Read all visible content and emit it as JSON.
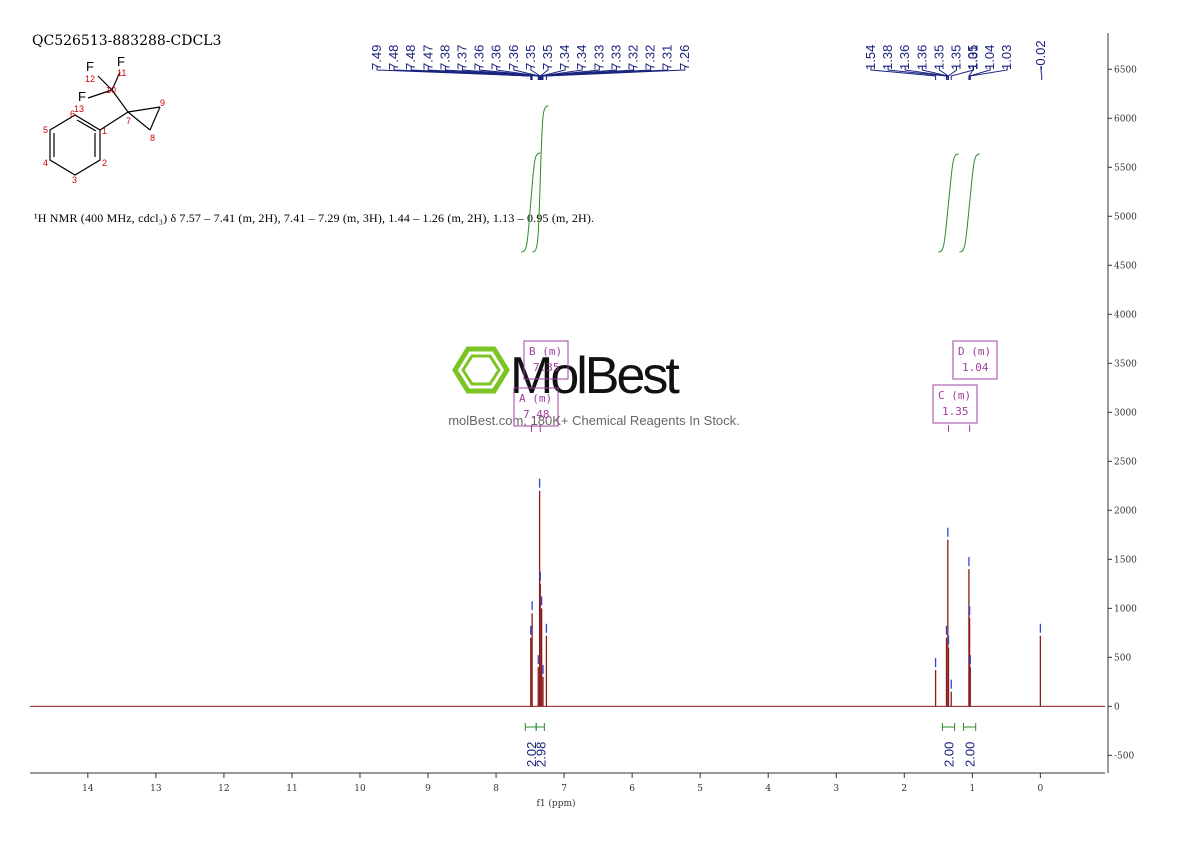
{
  "chart_data": {
    "type": "nmr",
    "title": "QC526513-883288-CDCL3",
    "xlabel": "f1 (ppm)",
    "description": "¹H NMR (400 MHz, cdcl₃) δ 7.57 – 7.41 (m, 2H), 7.41 – 7.29 (m, 3H), 1.44 – 1.26 (m, 2H), 1.13 – 0.95 (m, 2H).",
    "xlim": [
      14.85,
      -0.95
    ],
    "xticks": [
      14,
      13,
      12,
      11,
      10,
      9,
      8,
      7,
      6,
      5,
      4,
      3,
      2,
      1,
      0
    ],
    "ylim": [
      -680,
      6870
    ],
    "yticks": [
      -500,
      0,
      500,
      1000,
      1500,
      2000,
      2500,
      3000,
      3500,
      4000,
      4500,
      5000,
      5500,
      6000,
      6500
    ],
    "series": [
      {
        "color": "#8b1a1a",
        "x": [
          7.49,
          7.47,
          7.38,
          7.36,
          7.35,
          7.33,
          7.31,
          7.26,
          1.54,
          1.38,
          1.36,
          1.35,
          1.31,
          1.05,
          1.04,
          1.03,
          0
        ],
        "values": [
          700,
          950,
          400,
          2200,
          1250,
          1000,
          300,
          720,
          370,
          700,
          1700,
          600,
          150,
          1400,
          900,
          400,
          720
        ]
      }
    ],
    "peak_label_groups": [
      [
        7.49,
        7.48,
        7.48,
        7.47,
        7.38,
        7.37,
        7.36,
        7.36,
        7.36,
        7.35,
        7.35,
        7.34,
        7.34,
        7.33,
        7.33,
        7.32,
        7.32,
        7.31,
        7.26
      ],
      [
        1.54,
        1.38,
        1.36,
        1.36,
        1.35,
        1.35,
        1.31
      ],
      [
        1.05,
        1.04,
        1.03
      ],
      [
        -0.02
      ]
    ],
    "integrals": {
      "values": [
        2.02,
        2.98,
        2,
        2
      ],
      "value_labels": [
        "2.02",
        "2.98",
        "2.00",
        "2.00"
      ],
      "ranges": [
        [
          7.57,
          7.41
        ],
        [
          7.41,
          7.29
        ],
        [
          1.44,
          1.26
        ],
        [
          1.13,
          0.95
        ]
      ],
      "color": "#2e8b2e"
    },
    "multiplets": [
      {
        "label": "A (m)",
        "shift": 7.48
      },
      {
        "label": "B (m)",
        "shift": 7.35
      },
      {
        "label": "C (m)",
        "shift": 1.35
      },
      {
        "label": "D (m)",
        "shift": 1.04
      }
    ]
  },
  "structure": {
    "fluorines": [
      "F",
      "F",
      "F"
    ],
    "numbers": [
      "1",
      "2",
      "3",
      "4",
      "5",
      "6",
      "7",
      "8",
      "9",
      "10",
      "11",
      "12",
      "13"
    ]
  },
  "watermark": {
    "brand": "MolBest",
    "tagline": "molBest.com, 180K+ Chemical Reagents In Stock."
  }
}
